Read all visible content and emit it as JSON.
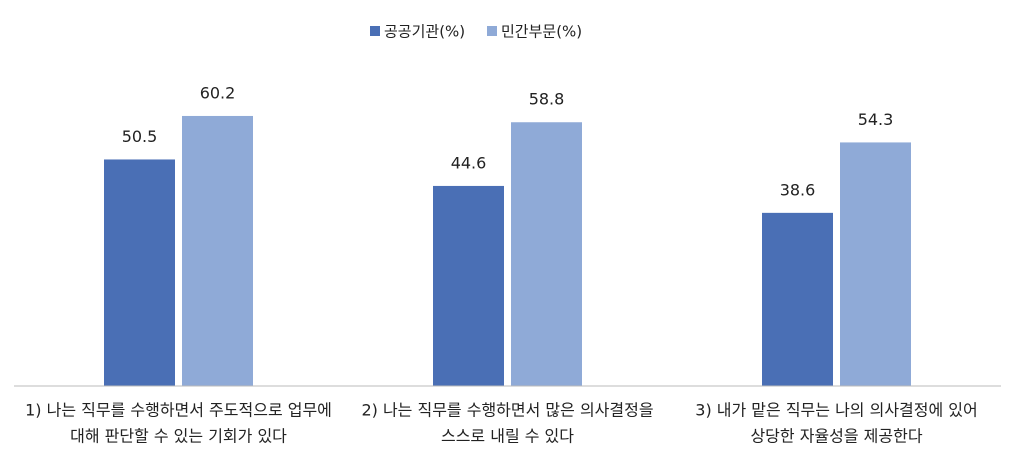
{
  "chart_data": {
    "type": "bar",
    "categories": [
      [
        "1) 나는 직무를 수행하면서 주도적으로 업무에",
        "대해 판단할 수 있는 기회가 있다"
      ],
      [
        "2) 나는 직무를 수행하면서 많은 의사결정을",
        "스스로 내릴 수 있다"
      ],
      [
        "3) 내가 맡은 직무는 나의 의사결정에 있어",
        "상당한 자율성을 제공한다"
      ]
    ],
    "series": [
      {
        "name": "공공기관(%)",
        "color": "#4a6fb5",
        "values": [
          50.5,
          44.6,
          38.6
        ]
      },
      {
        "name": "민간부문(%)",
        "color": "#8faad7",
        "values": [
          60.2,
          58.8,
          54.3
        ]
      }
    ],
    "ylim": [
      0,
      70
    ],
    "legend": "top"
  }
}
